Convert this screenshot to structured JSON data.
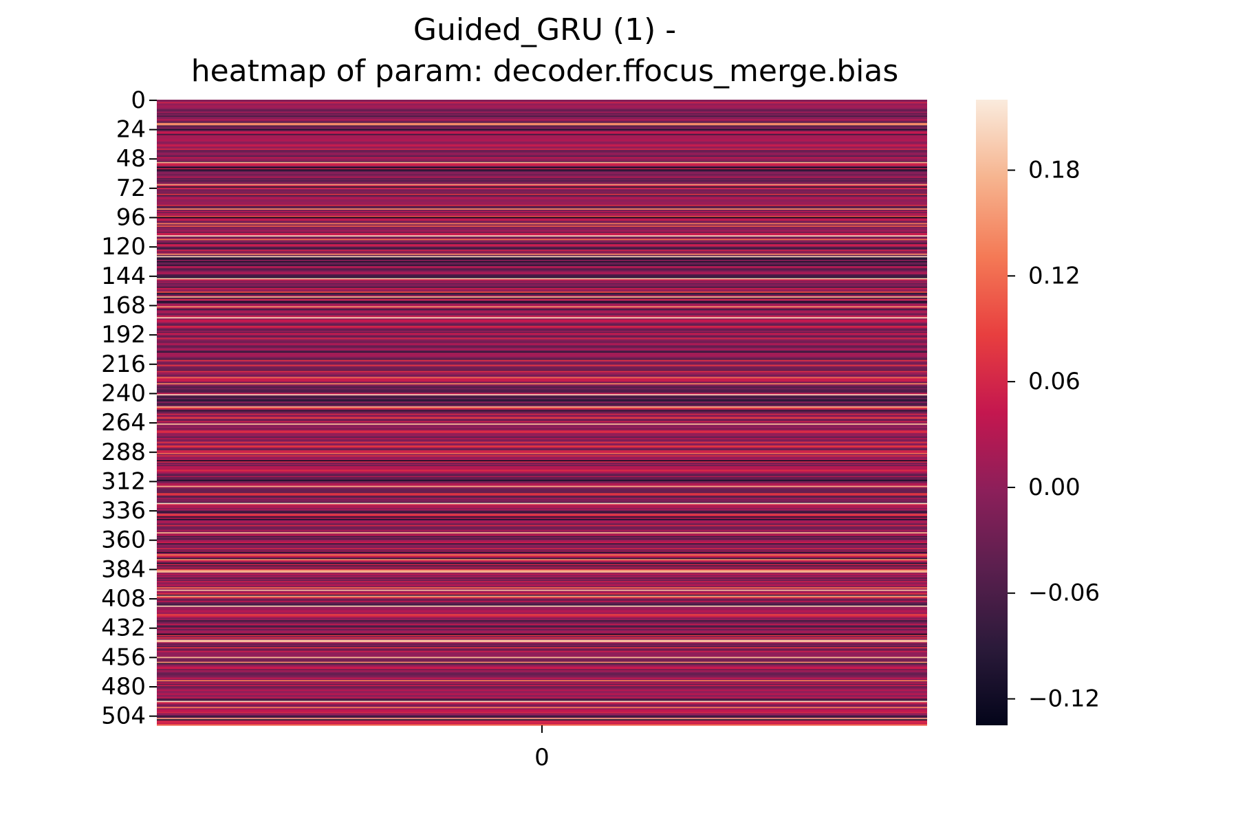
{
  "chart_data": {
    "type": "heatmap",
    "title": "Guided_GRU (1) -",
    "subtitle": "heatmap of param: decoder.ffocus_merge.bias",
    "x_tick_labels": [
      "0"
    ],
    "y_tick_labels": [
      "0",
      "24",
      "48",
      "72",
      "96",
      "120",
      "144",
      "168",
      "192",
      "216",
      "240",
      "264",
      "288",
      "312",
      "336",
      "360",
      "384",
      "408",
      "432",
      "456",
      "480",
      "504"
    ],
    "n_rows": 512,
    "n_cols": 1,
    "colorbar": {
      "vmin": -0.135,
      "vmax": 0.22,
      "tick_values": [
        -0.12,
        -0.06,
        0.0,
        0.06,
        0.12,
        0.18
      ],
      "tick_labels": [
        "−0.12",
        "−0.06",
        "0.00",
        "0.06",
        "0.12",
        "0.18"
      ],
      "colormap": "rocket",
      "colormap_stops": [
        "#03051a",
        "#2b1a3a",
        "#5a1f4e",
        "#8c1f5a",
        "#c4174f",
        "#e83f3f",
        "#f47a56",
        "#f6b48f",
        "#faebdd"
      ]
    },
    "row_value_summary": "512 bias values, mostly between -0.06 and 0.06 with scattered peaks near 0.15-0.2 and dips near -0.12",
    "values_sample_notes": "row 511 (last) is bright (~0.11); rows ~96 and ~55 are near -0.12"
  }
}
